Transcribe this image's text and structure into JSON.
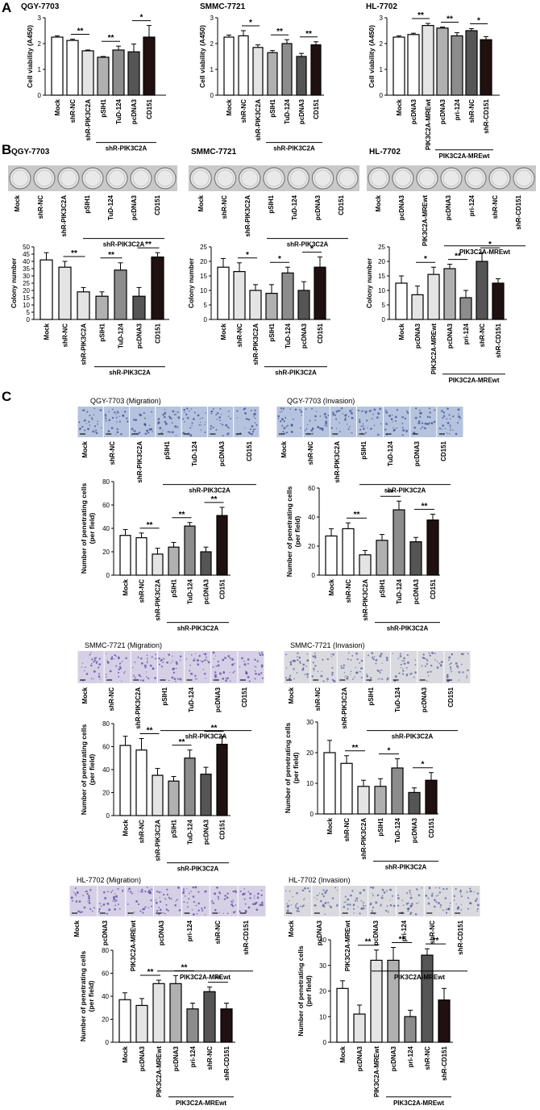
{
  "figure": {
    "panels": [
      "A",
      "B",
      "C"
    ],
    "cell_lines": [
      "QGY-7703",
      "SMMC-7721",
      "HL-7702"
    ],
    "titles_c": [
      "QGY-7703 (Migration)",
      "QGY-7703 (Invasion)",
      "SMMC-7721 (Migration)",
      "SMMC-7721 (Invasion)",
      "HL-7702 (Migration)",
      "HL-7702 (Invasion)"
    ],
    "colors": {
      "white": "#ffffff",
      "light": "#e4e4e4",
      "mid": "#b0b0b0",
      "midDark": "#8c8c8c",
      "dark": "#555555",
      "black": "#201010"
    }
  },
  "chart_data": [
    {
      "id": "A1",
      "type": "bar",
      "ylabel": "Cell viability (A450)",
      "ylim": [
        0,
        3
      ],
      "yticks": [
        0,
        1,
        2,
        3
      ],
      "categories": [
        "Mock",
        "shR-NC",
        "shR-PIK3C2A",
        "pSIH1",
        "TuD-124",
        "pcDNA3",
        "CD151"
      ],
      "values": [
        2.25,
        2.12,
        1.72,
        1.47,
        1.75,
        1.68,
        2.25
      ],
      "errors": [
        0.05,
        0.05,
        0.03,
        0.03,
        0.15,
        0.3,
        0.45
      ],
      "fills": [
        "white",
        "white",
        "light",
        "mid",
        "midDark",
        "dark",
        "black"
      ],
      "group": {
        "label": "shR-PIK3C2A",
        "from": 3,
        "to": 6
      },
      "sig": [
        {
          "a": 1,
          "b": 2,
          "label": "**"
        },
        {
          "a": 3,
          "b": 4,
          "label": "**"
        },
        {
          "a": 5,
          "b": 6,
          "label": "*"
        }
      ]
    },
    {
      "id": "A2",
      "type": "bar",
      "ylabel": "Cell viability (A450)",
      "ylim": [
        0,
        3
      ],
      "yticks": [
        0,
        1,
        2,
        3
      ],
      "categories": [
        "Mock",
        "shR-NC",
        "shR-PIK3C2A",
        "pSIH1",
        "TuD-124",
        "pcDNA3",
        "CD151"
      ],
      "values": [
        2.25,
        2.3,
        1.85,
        1.65,
        2.0,
        1.5,
        1.95
      ],
      "errors": [
        0.08,
        0.2,
        0.1,
        0.08,
        0.15,
        0.12,
        0.12
      ],
      "fills": [
        "white",
        "white",
        "light",
        "mid",
        "midDark",
        "dark",
        "black"
      ],
      "group": {
        "label": "shR-PIK3C2A",
        "from": 3,
        "to": 6
      },
      "sig": [
        {
          "a": 1,
          "b": 2,
          "label": "*"
        },
        {
          "a": 3,
          "b": 4,
          "label": "**"
        },
        {
          "a": 5,
          "b": 6,
          "label": "**"
        }
      ]
    },
    {
      "id": "A3",
      "type": "bar",
      "ylabel": "Cell viability (A450)",
      "ylim": [
        0,
        3
      ],
      "yticks": [
        0,
        1,
        2,
        3
      ],
      "categories": [
        "Mock",
        "pcDNA3",
        "PIK3C2A-MREwt",
        "pcDNA3",
        "pri-124",
        "shR-NC",
        "shR-CD151"
      ],
      "values": [
        2.25,
        2.35,
        2.7,
        2.6,
        2.3,
        2.5,
        2.15
      ],
      "errors": [
        0.05,
        0.05,
        0.08,
        0.04,
        0.12,
        0.08,
        0.12
      ],
      "fills": [
        "white",
        "white",
        "light",
        "mid",
        "midDark",
        "dark",
        "black"
      ],
      "group": {
        "label": "PIK3C2A-MREwt",
        "from": 3,
        "to": 6
      },
      "sig": [
        {
          "a": 1,
          "b": 2,
          "label": "**"
        },
        {
          "a": 3,
          "b": 4,
          "label": "**"
        },
        {
          "a": 5,
          "b": 6,
          "label": "*"
        }
      ]
    },
    {
      "id": "B1",
      "type": "bar",
      "ylabel": "Colony number",
      "ylim": [
        0,
        50
      ],
      "yticks": [
        0,
        5,
        10,
        15,
        20,
        25,
        30,
        35,
        40,
        45,
        50
      ],
      "categories": [
        "Mock",
        "shR-NC",
        "shR-PIK3C2A",
        "pSIH1",
        "TuD-124",
        "pcDNA3",
        "CD151"
      ],
      "values": [
        41,
        36,
        19,
        16,
        34,
        16,
        43
      ],
      "errors": [
        5,
        4,
        3,
        3,
        5,
        6,
        3
      ],
      "fills": [
        "white",
        "light",
        "light",
        "mid",
        "midDark",
        "dark",
        "black"
      ],
      "group": {
        "label": "shR-PIK3C2A",
        "from": 3,
        "to": 6
      },
      "sig": [
        {
          "a": 1,
          "b": 2,
          "label": "**"
        },
        {
          "a": 3,
          "b": 4,
          "label": "**"
        },
        {
          "a": 5,
          "b": 6,
          "label": "**"
        }
      ]
    },
    {
      "id": "B2",
      "type": "bar",
      "ylabel": "Colony number",
      "ylim": [
        0,
        25
      ],
      "yticks": [
        0,
        5,
        10,
        15,
        20,
        25
      ],
      "categories": [
        "Mock",
        "shR-NC",
        "shR-PIK3C2A",
        "pSIH1",
        "TuD-124",
        "pcDNA3",
        "CD151"
      ],
      "values": [
        18,
        16.5,
        10,
        9,
        16,
        10,
        18
      ],
      "errors": [
        3,
        3,
        2,
        3,
        2,
        3,
        3.5
      ],
      "fills": [
        "white",
        "light",
        "light",
        "mid",
        "midDark",
        "dark",
        "black"
      ],
      "group": {
        "label": "shR-PIK3C2A",
        "from": 3,
        "to": 6
      },
      "sig": [
        {
          "a": 1,
          "b": 2,
          "label": "*"
        },
        {
          "a": 3,
          "b": 4,
          "label": "*"
        },
        {
          "a": 5,
          "b": 6,
          "label": "*"
        }
      ]
    },
    {
      "id": "B3",
      "type": "bar",
      "ylabel": "Colony number",
      "ylim": [
        0,
        25
      ],
      "yticks": [
        0,
        5,
        10,
        15,
        20,
        25
      ],
      "categories": [
        "Mock",
        "pcDNA3",
        "PIK3C2A-MREwt",
        "pcDNA3",
        "pri-124",
        "shR-NC",
        "shR-CD151"
      ],
      "values": [
        12.5,
        8.5,
        15.5,
        17.5,
        7.5,
        20,
        12.5
      ],
      "errors": [
        2.5,
        3,
        2.5,
        1.5,
        2.5,
        3,
        1.5
      ],
      "fills": [
        "white",
        "light",
        "light",
        "mid",
        "midDark",
        "dark",
        "black"
      ],
      "group": {
        "label": "PIK3C2A-MREwt",
        "from": 3,
        "to": 6
      },
      "sig": [
        {
          "a": 1,
          "b": 2,
          "label": "*"
        },
        {
          "a": 3,
          "b": 4,
          "label": "**"
        },
        {
          "a": 5,
          "b": 6,
          "label": "*"
        }
      ]
    },
    {
      "id": "C1",
      "type": "bar",
      "ylabel": "Number of penetrating cells",
      "ylabel2": "(per field)",
      "ylim": [
        0,
        80
      ],
      "yticks": [
        0,
        20,
        40,
        60,
        80
      ],
      "categories": [
        "Mock",
        "shR-NC",
        "shR-PIK3C2A",
        "pSIH1",
        "TuD-124",
        "pcDNA3",
        "CD151"
      ],
      "values": [
        34,
        32,
        18,
        24,
        42,
        20,
        51
      ],
      "errors": [
        5,
        4,
        5,
        4,
        3,
        4,
        7
      ],
      "fills": [
        "white",
        "white",
        "light",
        "mid",
        "midDark",
        "dark",
        "black"
      ],
      "group": {
        "label": "shR-PIK3C2A",
        "from": 3,
        "to": 6
      },
      "sig": [
        {
          "a": 1,
          "b": 2,
          "label": "**"
        },
        {
          "a": 3,
          "b": 4,
          "label": "**"
        },
        {
          "a": 5,
          "b": 6,
          "label": "**"
        }
      ]
    },
    {
      "id": "C2",
      "type": "bar",
      "ylabel": "Number of penetrating cells",
      "ylabel2": "(per field)",
      "ylim": [
        0,
        60
      ],
      "yticks": [
        0,
        20,
        40,
        60
      ],
      "categories": [
        "Mock",
        "shR-NC",
        "shR-PIK3C2A",
        "pSIH1",
        "TuD-124",
        "pcDNA3",
        "CD151"
      ],
      "values": [
        27,
        32,
        14,
        24,
        45,
        23,
        38
      ],
      "errors": [
        5,
        4,
        3,
        4,
        6,
        3,
        4
      ],
      "fills": [
        "white",
        "white",
        "light",
        "mid",
        "midDark",
        "dark",
        "black"
      ],
      "group": {
        "label": "shR-PIK3C2A",
        "from": 3,
        "to": 6
      },
      "sig": [
        {
          "a": 1,
          "b": 2,
          "label": "**"
        },
        {
          "a": 3,
          "b": 4,
          "label": "**"
        },
        {
          "a": 5,
          "b": 6,
          "label": "**"
        }
      ]
    },
    {
      "id": "C3",
      "type": "bar",
      "ylabel": "Number of penetrating cells",
      "ylabel2": "(per field)",
      "ylim": [
        0,
        80
      ],
      "yticks": [
        0,
        20,
        40,
        60,
        80
      ],
      "categories": [
        "Mock",
        "shR-NC",
        "shR-PIK3C2A",
        "pSIH1",
        "TuD-124",
        "pcDNA3",
        "CD151"
      ],
      "values": [
        61,
        57,
        35,
        30,
        50,
        36,
        62
      ],
      "errors": [
        8,
        10,
        6,
        4,
        7,
        6,
        7
      ],
      "fills": [
        "white",
        "white",
        "light",
        "mid",
        "midDark",
        "dark",
        "black"
      ],
      "group": {
        "label": "shR-PIK3C2A",
        "from": 3,
        "to": 6
      },
      "sig": [
        {
          "a": 1,
          "b": 2,
          "label": "**"
        },
        {
          "a": 3,
          "b": 4,
          "label": "**"
        },
        {
          "a": 5,
          "b": 6,
          "label": "**"
        }
      ]
    },
    {
      "id": "C4",
      "type": "bar",
      "ylabel": "Number of penetrating cells",
      "ylabel2": "(per field)",
      "ylim": [
        0,
        30
      ],
      "yticks": [
        0,
        10,
        20,
        30
      ],
      "categories": [
        "Mock",
        "shR-NC",
        "shR-PIK3C2A",
        "pSIH1",
        "TuD-124",
        "pcDNA3",
        "CD151"
      ],
      "values": [
        20,
        16.5,
        9,
        9,
        15,
        7,
        11
      ],
      "errors": [
        4,
        2.5,
        2,
        2.5,
        3,
        1.5,
        2.5
      ],
      "fills": [
        "white",
        "white",
        "light",
        "mid",
        "midDark",
        "dark",
        "black"
      ],
      "group": {
        "label": "shR-PIK3C2A",
        "from": 3,
        "to": 6
      },
      "sig": [
        {
          "a": 1,
          "b": 2,
          "label": "**"
        },
        {
          "a": 3,
          "b": 4,
          "label": "*"
        },
        {
          "a": 5,
          "b": 6,
          "label": "*"
        }
      ]
    },
    {
      "id": "C5",
      "type": "bar",
      "ylabel": "Number of penetrating cells",
      "ylabel2": "(per field)",
      "ylim": [
        0,
        80
      ],
      "yticks": [
        0,
        20,
        40,
        60,
        80
      ],
      "categories": [
        "Mock",
        "pcDNA3",
        "PIK3C2A-MREwt",
        "pcDNA3",
        "pri-124",
        "shR-NC",
        "shR-CD151"
      ],
      "values": [
        37,
        32,
        51,
        51,
        29,
        44,
        29
      ],
      "errors": [
        6,
        6,
        3,
        7,
        5,
        4,
        5
      ],
      "fills": [
        "white",
        "light",
        "light",
        "mid",
        "midDark",
        "dark",
        "black"
      ],
      "group": {
        "label": "PIK3C2A-MREwt",
        "from": 3,
        "to": 6
      },
      "sig": [
        {
          "a": 1,
          "b": 2,
          "label": "**"
        },
        {
          "a": 3,
          "b": 4,
          "label": "**"
        },
        {
          "a": 5,
          "b": 6,
          "label": "**"
        }
      ]
    },
    {
      "id": "C6",
      "type": "bar",
      "ylabel": "Number of penetrating cells",
      "ylabel2": "(per field)",
      "ylim": [
        0,
        40
      ],
      "yticks": [
        0,
        10,
        20,
        30,
        40
      ],
      "categories": [
        "Mock",
        "pcDNA3",
        "PIK3C2A-MREwt",
        "pcDNA3",
        "pri-124",
        "shR-NC",
        "shR-CD151"
      ],
      "values": [
        21,
        11,
        32,
        32,
        10,
        34,
        16.5
      ],
      "errors": [
        3,
        3.5,
        4,
        5,
        2.5,
        2.5,
        4.5
      ],
      "fills": [
        "white",
        "light",
        "light",
        "mid",
        "midDark",
        "dark",
        "black"
      ],
      "group": {
        "label": "PIK3C2A-MREwt",
        "from": 3,
        "to": 6
      },
      "sig": [
        {
          "a": 1,
          "b": 2,
          "label": "**"
        },
        {
          "a": 3,
          "b": 4,
          "label": "**"
        },
        {
          "a": 5,
          "b": 6,
          "label": "**"
        }
      ]
    }
  ],
  "strips": [
    {
      "id": "B1",
      "type": "plates",
      "categories": [
        "Mock",
        "shR-NC",
        "shR-PIK3C2A",
        "pSIH1",
        "TuD-124",
        "pcDNA3",
        "CD151"
      ],
      "group": {
        "label": "shR-PIK3C2A",
        "from": 3,
        "to": 6
      }
    },
    {
      "id": "B2",
      "type": "plates",
      "categories": [
        "Mock",
        "shR-NC",
        "shR-PIK3C2A",
        "pSIH1",
        "TuD-124",
        "pcDNA3",
        "CD151"
      ],
      "group": {
        "label": "shR-PIK3C2A",
        "from": 3,
        "to": 6
      }
    },
    {
      "id": "B3",
      "type": "plates",
      "categories": [
        "Mock",
        "pcDNA3",
        "PIK3C2A-MREwt",
        "pcDNA3",
        "pri-124",
        "shR-NC",
        "shR-CD151"
      ],
      "group": {
        "label": "PIK3C2A-MREwt",
        "from": 3,
        "to": 6
      }
    },
    {
      "id": "C1",
      "type": "micro",
      "tone": "blue",
      "categories": [
        "Mock",
        "shR-NC",
        "shR-PIK3C2A",
        "pSIH1",
        "TuD-124",
        "pcDNA3",
        "CD151"
      ],
      "group": {
        "label": "shR-PIK3C2A",
        "from": 3,
        "to": 6
      }
    },
    {
      "id": "C2",
      "type": "micro",
      "tone": "blue",
      "categories": [
        "Mock",
        "shR-NC",
        "shR-PIK3C2A",
        "pSIH1",
        "TuD-124",
        "pcDNA3",
        "CD151"
      ],
      "group": {
        "label": "shR-PIK3C2A",
        "from": 3,
        "to": 6
      }
    },
    {
      "id": "C3",
      "type": "micro",
      "tone": "purple",
      "categories": [
        "Mock",
        "shR-NC",
        "shR-PIK3C2A",
        "pSIH1",
        "TuD-124",
        "pcDNA3",
        "CD151"
      ],
      "group": {
        "label": "shR-PIK3C2A",
        "from": 3,
        "to": 6
      }
    },
    {
      "id": "C4",
      "type": "micro",
      "tone": "grey",
      "categories": [
        "Mock",
        "shR-NC",
        "shR-PIK3C2A",
        "pSIH1",
        "TuD-124",
        "pcDNA3",
        "CD151"
      ],
      "group": {
        "label": "shR-PIK3C2A",
        "from": 3,
        "to": 6
      }
    },
    {
      "id": "C5",
      "type": "micro",
      "tone": "purple",
      "categories": [
        "Mock",
        "pcDNA3",
        "PIK3C2A-MREwt",
        "pcDNA3",
        "pri-124",
        "shR-NC",
        "shR-CD151"
      ],
      "group": {
        "label": "PIK3C2A-MREwt",
        "from": 3,
        "to": 6
      }
    },
    {
      "id": "C6",
      "type": "micro",
      "tone": "grey",
      "categories": [
        "Mock",
        "pcDNA3",
        "PIK3C2A-MREwt",
        "pcDNA3",
        "pri-124",
        "shR-NC",
        "shR-CD151"
      ],
      "group": {
        "label": "PIK3C2A-MREwt",
        "from": 3,
        "to": 6
      }
    }
  ]
}
